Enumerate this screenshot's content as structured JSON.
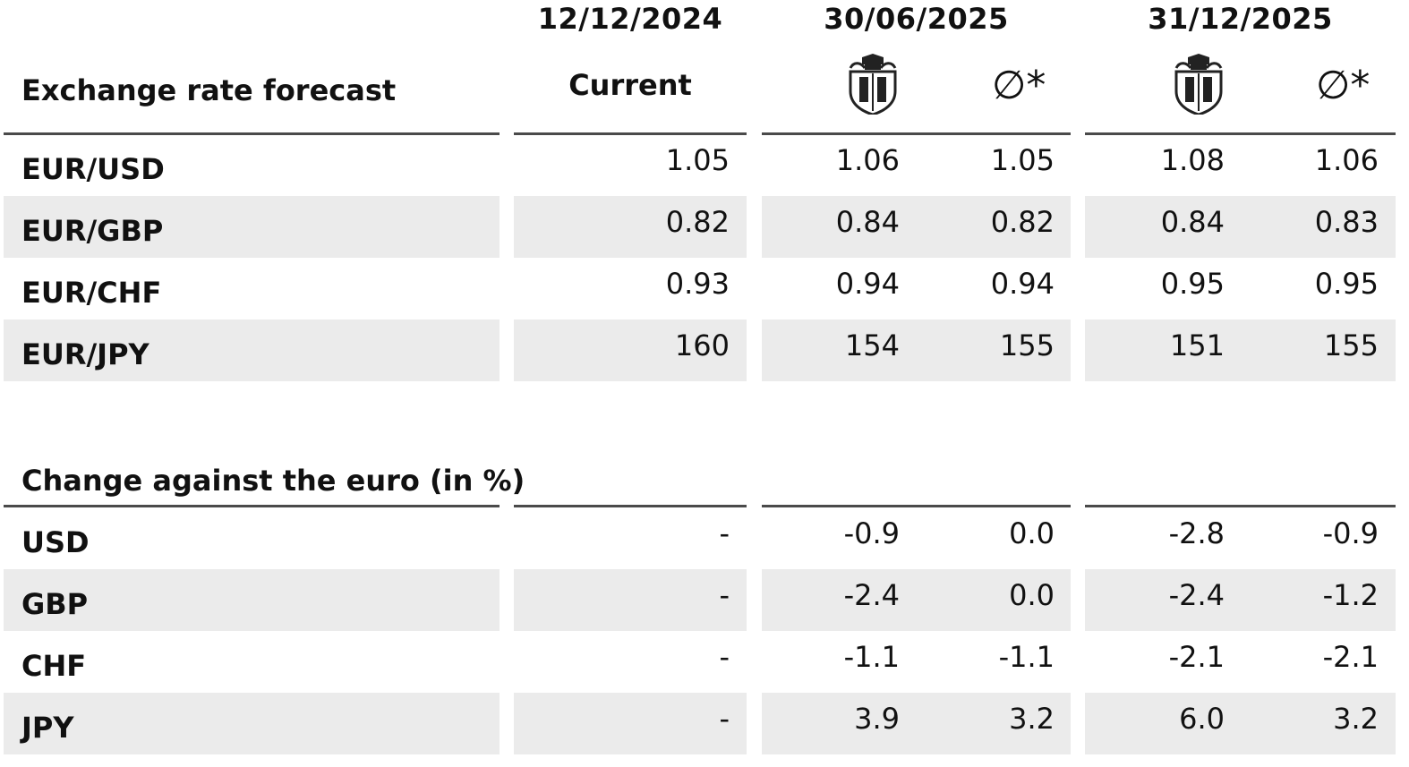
{
  "header": {
    "title": "Exchange rate forecast",
    "date_current": "12/12/2024",
    "date_mid": "30/06/2025",
    "date_end": "31/12/2025",
    "current_label": "Current",
    "avg_symbol": "∅*",
    "crest_icon": "bank-crest-icon"
  },
  "chart_data": {
    "type": "table",
    "columns": [
      "Current 12/12/2024",
      "30/06/2025 forecast",
      "30/06/2025 ∅*",
      "31/12/2025 forecast",
      "31/12/2025 ∅*"
    ],
    "rates": {
      "title": "Exchange rate forecast",
      "rows": [
        {
          "label": "EUR/USD",
          "values": [
            "1.05",
            "1.06",
            "1.05",
            "1.08",
            "1.06"
          ]
        },
        {
          "label": "EUR/GBP",
          "values": [
            "0.82",
            "0.84",
            "0.82",
            "0.84",
            "0.83"
          ]
        },
        {
          "label": "EUR/CHF",
          "values": [
            "0.93",
            "0.94",
            "0.94",
            "0.95",
            "0.95"
          ]
        },
        {
          "label": "EUR/JPY",
          "values": [
            "160",
            "154",
            "155",
            "151",
            "155"
          ]
        }
      ]
    },
    "changes": {
      "title": "Change against the euro (in %)",
      "rows": [
        {
          "label": "USD",
          "values": [
            "-",
            "-0.9",
            "0.0",
            "-2.8",
            "-0.9"
          ]
        },
        {
          "label": "GBP",
          "values": [
            "-",
            "-2.4",
            "0.0",
            "-2.4",
            "-1.2"
          ]
        },
        {
          "label": "CHF",
          "values": [
            "-",
            "-1.1",
            "-1.1",
            "-2.1",
            "-2.1"
          ]
        },
        {
          "label": "JPY",
          "values": [
            "-",
            "3.9",
            "3.2",
            "6.0",
            "3.2"
          ]
        }
      ]
    }
  }
}
